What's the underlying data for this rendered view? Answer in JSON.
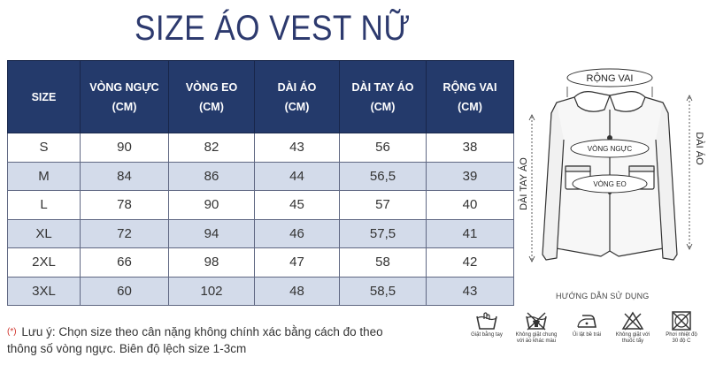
{
  "title": "SIZE ÁO VEST NỮ",
  "table": {
    "headers": [
      {
        "l1": "SIZE",
        "l2": ""
      },
      {
        "l1": "VÒNG NGỰC",
        "l2": "(CM)"
      },
      {
        "l1": "VÒNG EO",
        "l2": "(CM)"
      },
      {
        "l1": "DÀI ÁO",
        "l2": "(CM)"
      },
      {
        "l1": "DÀI TAY ÁO",
        "l2": "(CM)"
      },
      {
        "l1": "RỘNG VAI",
        "l2": "(CM)"
      }
    ],
    "rows": [
      [
        "S",
        "90",
        "82",
        "43",
        "56",
        "38"
      ],
      [
        "M",
        "84",
        "86",
        "44",
        "56,5",
        "39"
      ],
      [
        "L",
        "78",
        "90",
        "45",
        "57",
        "40"
      ],
      [
        "XL",
        "72",
        "94",
        "46",
        "57,5",
        "41"
      ],
      [
        "2XL",
        "66",
        "98",
        "47",
        "58",
        "42"
      ],
      [
        "3XL",
        "60",
        "102",
        "48",
        "58,5",
        "43"
      ]
    ]
  },
  "note": {
    "marker": "(*)",
    "line1": "Lưu ý: Chọn size theo cân nặng không chính xác bằng cách đo theo",
    "line2": "thông số vòng ngực. Biên độ lệch size 1-3cm"
  },
  "diagram": {
    "rong_vai": "RỘNG VAI",
    "dai_ao": "DÀI ÁO",
    "dai_tay_ao": "DÀI TAY ÁO",
    "vong_nguc": "VÒNG NGỰC",
    "vong_eo": "VÒNG EO",
    "caption": "HƯỚNG DẪN SỬ DỤNG"
  },
  "care": [
    {
      "icon": "hand-wash-icon",
      "l1": "Giặt bằng tay",
      "l2": ""
    },
    {
      "icon": "no-mixed-wash-icon",
      "l1": "Không giặt chung",
      "l2": "với áo khác màu"
    },
    {
      "icon": "iron-reverse-icon",
      "l1": "Ủi lật bề trái",
      "l2": ""
    },
    {
      "icon": "no-bleach-icon",
      "l1": "Không giặt với",
      "l2": "thuốc tẩy"
    },
    {
      "icon": "dry-30-icon",
      "l1": "Phơi nhiệt độ",
      "l2": "30 độ C"
    }
  ],
  "colors": {
    "title": "#2d3a6e",
    "header_bg": "#243a6b",
    "alt_row": "#d3dbea",
    "note_marker": "#d0342c"
  }
}
